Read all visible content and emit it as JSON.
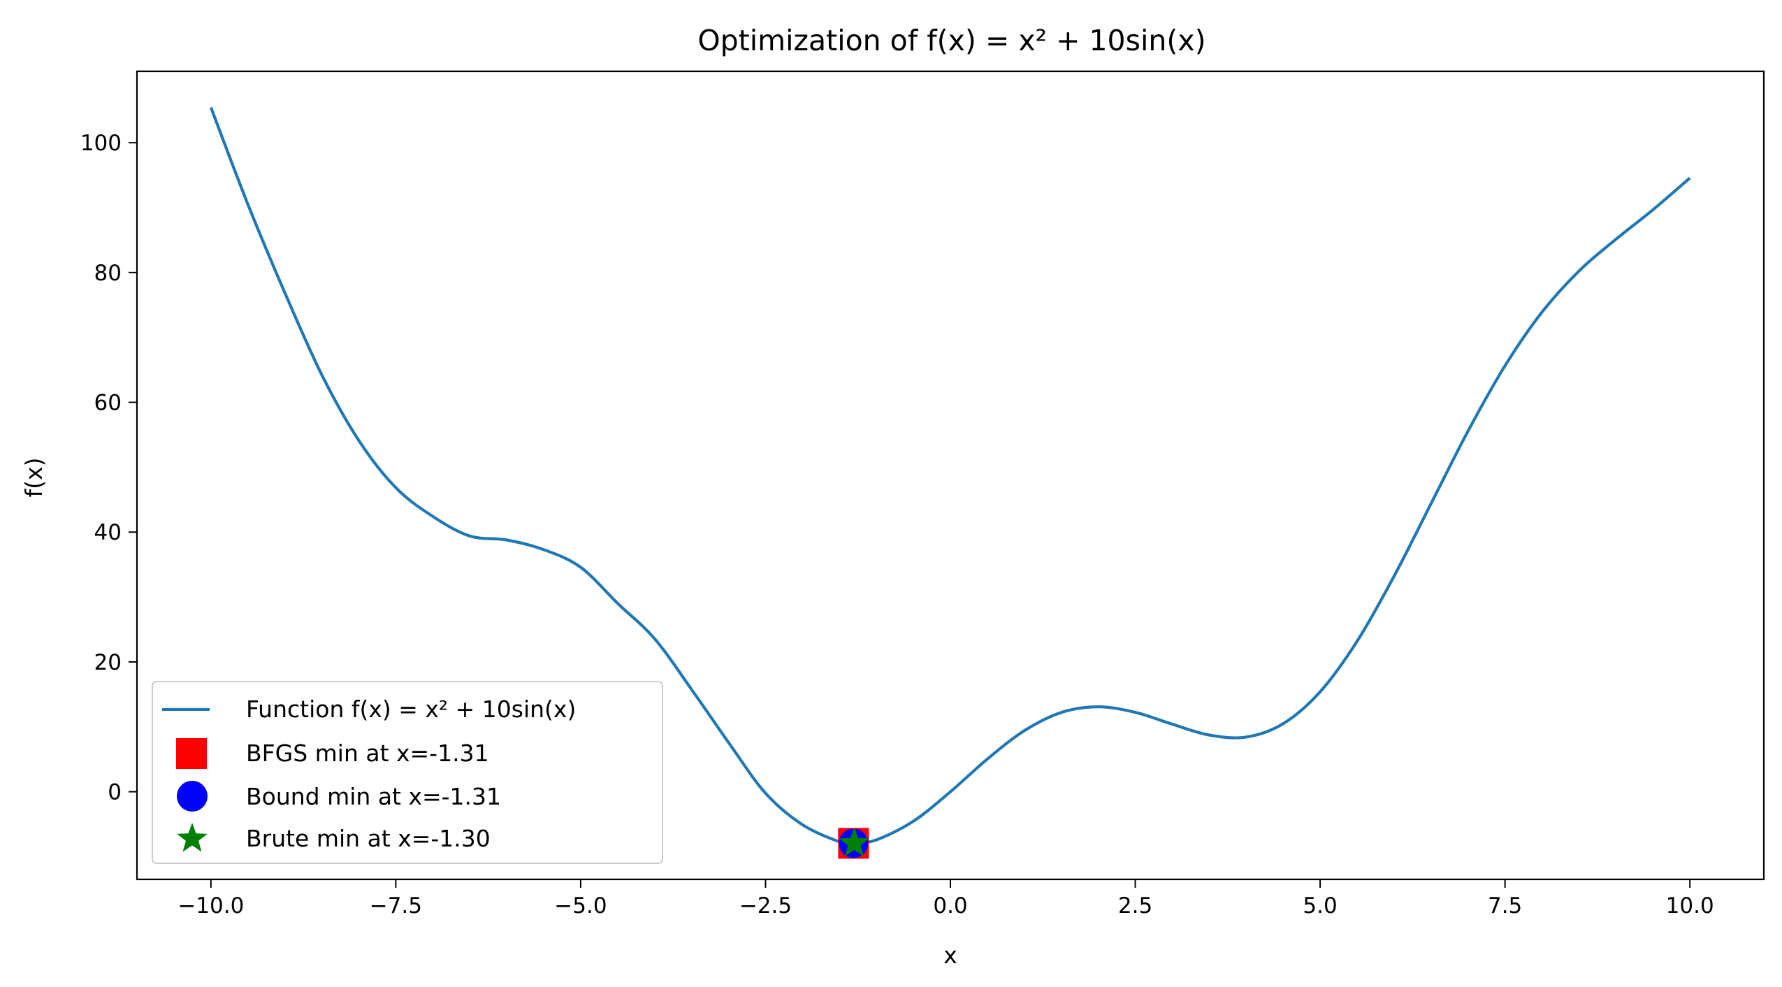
{
  "chart_data": {
    "type": "line",
    "title": "Optimization of f(x) = x² + 10sin(x)",
    "xlabel": "x",
    "ylabel": "f(x)",
    "xlim": [
      -11,
      11
    ],
    "ylim": [
      -13.5,
      111
    ],
    "grid": false,
    "legend_position": "lower-left",
    "xticks": [
      -10.0,
      -7.5,
      -5.0,
      -2.5,
      0.0,
      2.5,
      5.0,
      7.5,
      10.0
    ],
    "xtick_labels": [
      "−10.0",
      "−7.5",
      "−5.0",
      "−2.5",
      "0.0",
      "2.5",
      "5.0",
      "7.5",
      "10.0"
    ],
    "yticks": [
      0,
      20,
      40,
      60,
      80,
      100
    ],
    "ytick_labels": [
      "0",
      "20",
      "40",
      "60",
      "80",
      "100"
    ],
    "series": [
      {
        "name": "Function f(x) = x² + 10sin(x)",
        "kind": "line",
        "color": "#1f77b4",
        "x": [
          -10,
          -9.5,
          -9,
          -8.5,
          -8,
          -7.5,
          -7,
          -6.5,
          -6,
          -5.5,
          -5,
          -4.5,
          -4,
          -3.5,
          -3,
          -2.5,
          -2,
          -1.5,
          -1.31,
          -1,
          -0.5,
          0,
          0.5,
          1,
          1.5,
          2,
          2.5,
          3,
          3.5,
          4,
          4.5,
          5,
          5.5,
          6,
          6.5,
          7,
          7.5,
          8,
          8.5,
          9,
          9.5,
          10
        ],
        "y": [
          105.44,
          90.5,
          76.88,
          64.23,
          54.11,
          46.85,
          42.43,
          39.4,
          38.79,
          37.3,
          34.59,
          29.03,
          23.57,
          15.76,
          7.59,
          -0.23,
          -5.09,
          -7.72,
          -7.95,
          -7.41,
          -4.54,
          0,
          5.04,
          9.41,
          12.22,
          13.09,
          12.23,
          10.41,
          8.74,
          8.43,
          10.48,
          15.41,
          23.19,
          33.21,
          44.4,
          55.57,
          65.63,
          73.89,
          80.23,
          85.12,
          89.67,
          94.56
        ]
      },
      {
        "name": "BFGS min at x=-1.31",
        "kind": "marker",
        "marker": "square",
        "color": "#ff0000",
        "x": [
          -1.31
        ],
        "y": [
          -7.95
        ]
      },
      {
        "name": "Bound min at x=-1.31",
        "kind": "marker",
        "marker": "circle",
        "color": "#0000ff",
        "x": [
          -1.31
        ],
        "y": [
          -7.95
        ]
      },
      {
        "name": "Brute min at x=-1.30",
        "kind": "marker",
        "marker": "star",
        "color": "#008000",
        "x": [
          -1.3
        ],
        "y": [
          -7.95
        ]
      }
    ]
  }
}
